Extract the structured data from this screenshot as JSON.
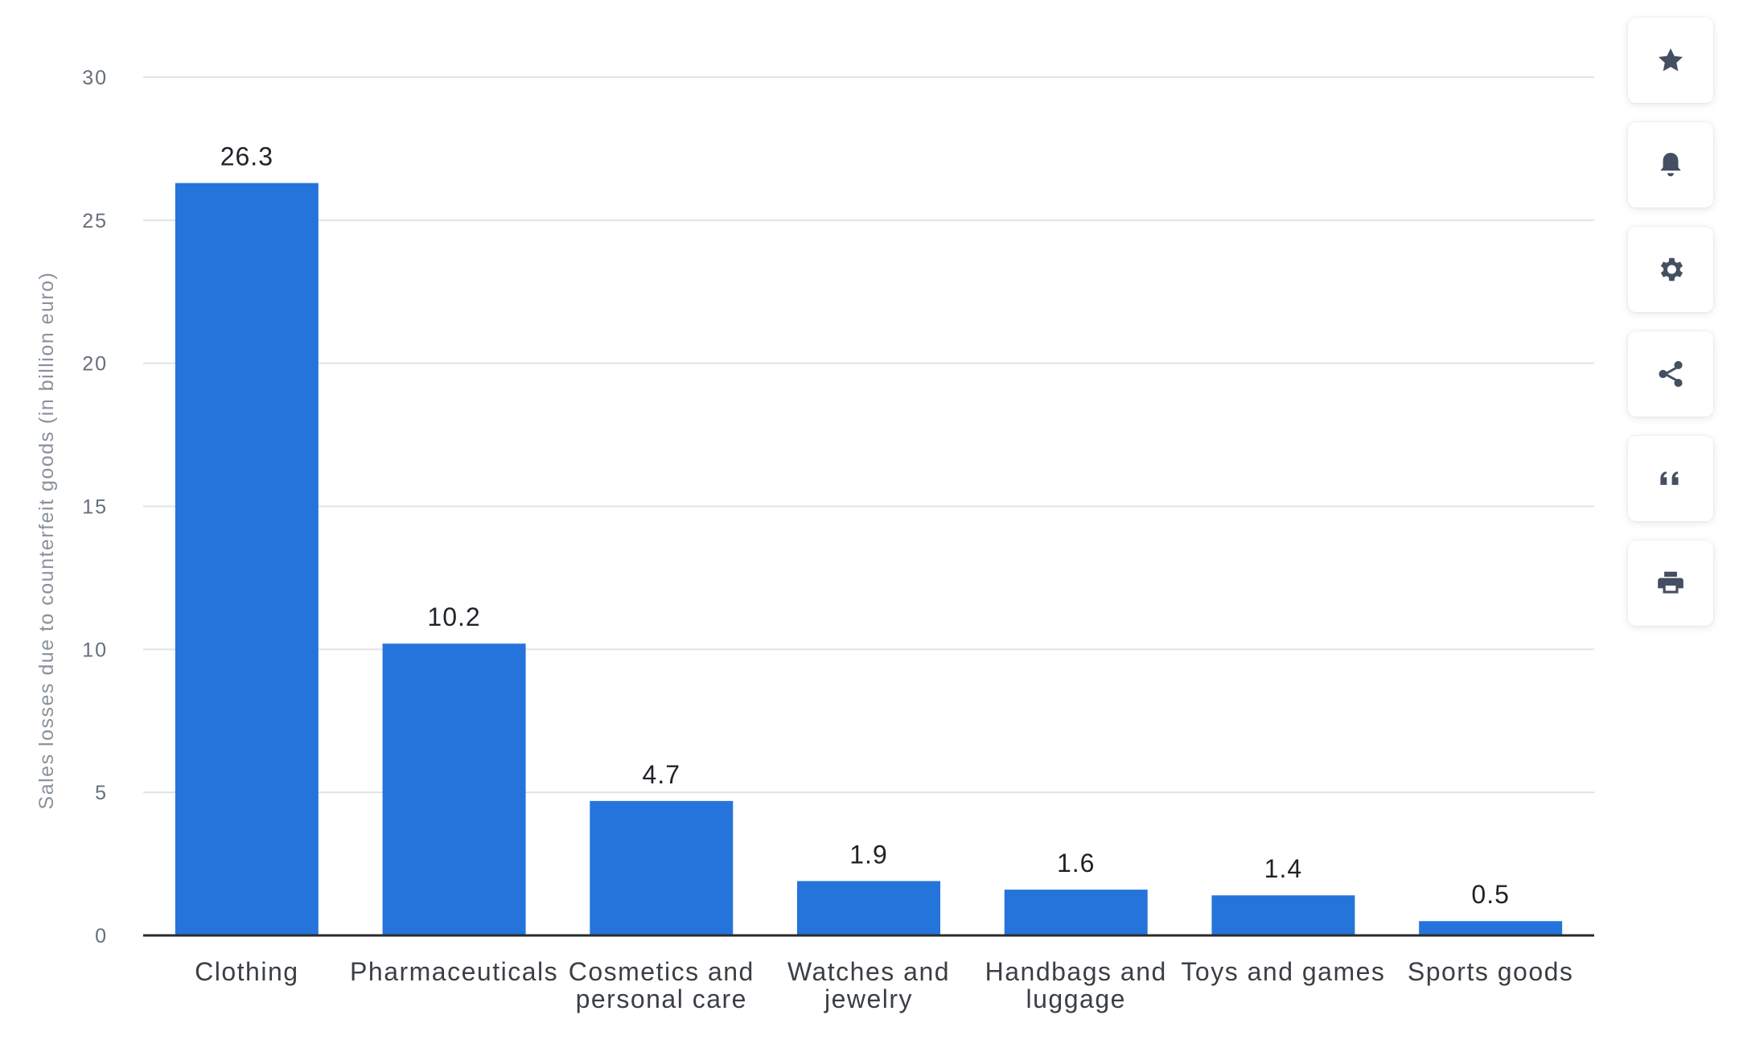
{
  "chart_data": {
    "type": "bar",
    "categories": [
      [
        "Clothing"
      ],
      [
        "Pharmaceuticals"
      ],
      [
        "Cosmetics and",
        "personal care"
      ],
      [
        "Watches and",
        "jewelry"
      ],
      [
        "Handbags and",
        "luggage"
      ],
      [
        "Toys and games"
      ],
      [
        "Sports goods"
      ]
    ],
    "values": [
      26.3,
      10.2,
      4.7,
      1.9,
      1.6,
      1.4,
      0.5
    ],
    "value_labels": [
      "26.3",
      "10.2",
      "4.7",
      "1.9",
      "1.6",
      "1.4",
      "0.5"
    ],
    "ylabel": "Sales losses due to counterfeit goods (in billion euro)",
    "xlabel": "",
    "ylim": [
      0,
      30
    ],
    "yticks": [
      0,
      5,
      10,
      15,
      20,
      25,
      30
    ],
    "grid": true,
    "bar_color": "#2574db"
  },
  "toolbar": {
    "items": [
      {
        "name": "favorite-button",
        "icon": "star-icon"
      },
      {
        "name": "notification-button",
        "icon": "bell-icon"
      },
      {
        "name": "settings-button",
        "icon": "gear-icon"
      },
      {
        "name": "share-button",
        "icon": "share-icon"
      },
      {
        "name": "cite-button",
        "icon": "quote-icon"
      },
      {
        "name": "print-button",
        "icon": "printer-icon"
      }
    ]
  }
}
